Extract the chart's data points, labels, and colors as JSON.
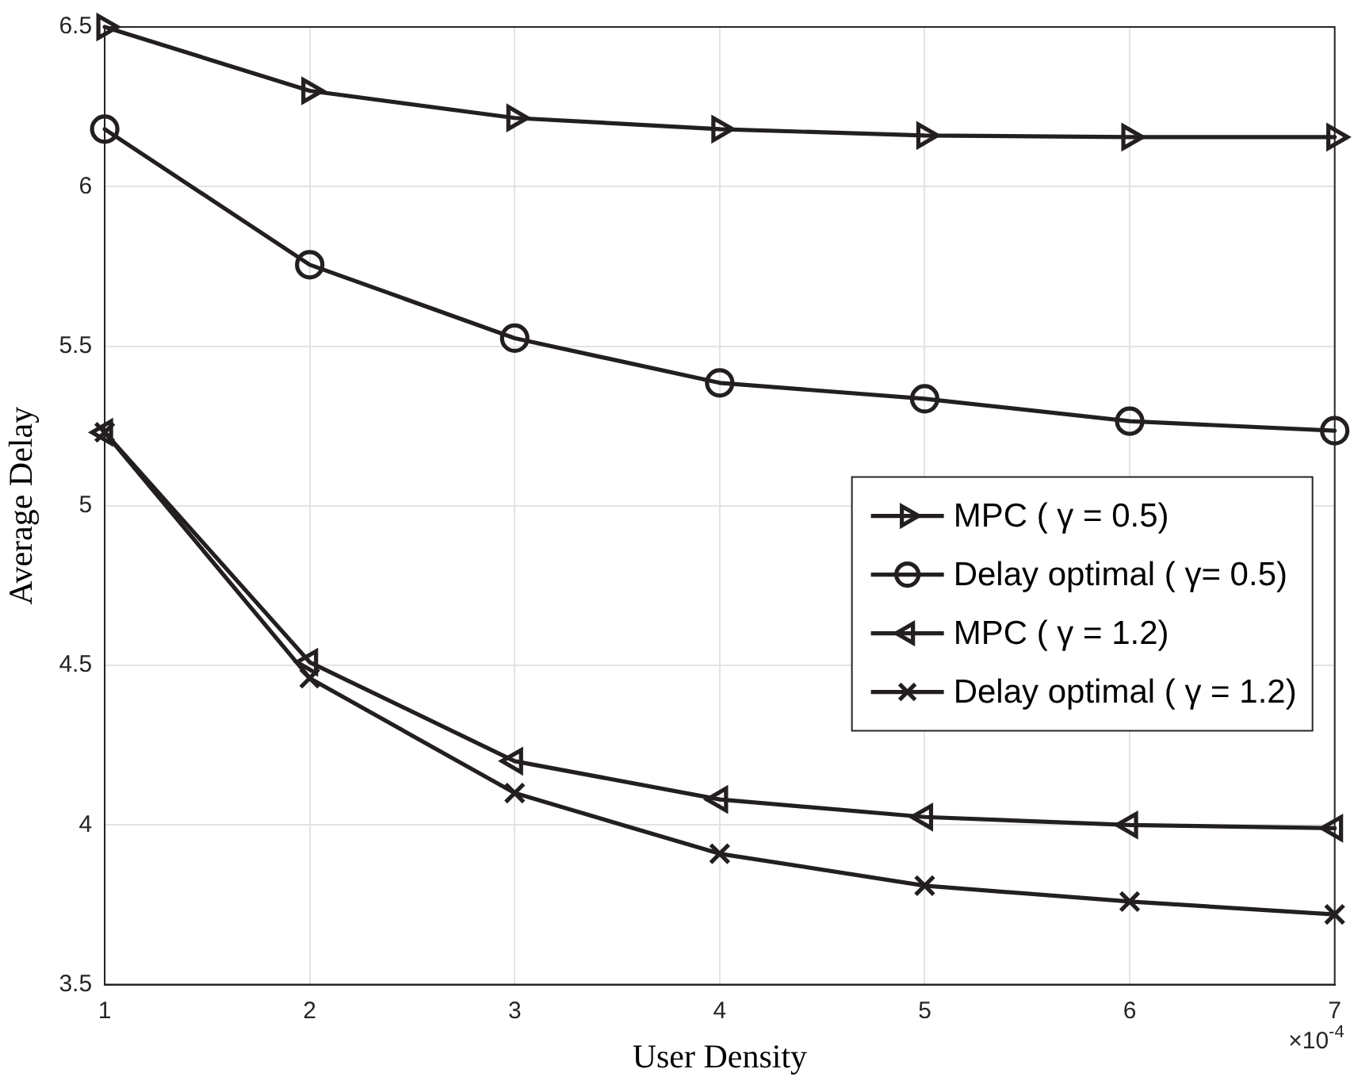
{
  "chart_data": {
    "type": "line",
    "xlabel": "User Density",
    "ylabel": "Average Delay",
    "x": [
      1,
      2,
      3,
      4,
      5,
      6,
      7
    ],
    "xlim": [
      1,
      7
    ],
    "xticks": [
      1,
      2,
      3,
      4,
      5,
      6,
      7
    ],
    "ylim": [
      3.5,
      6.5
    ],
    "yticks": [
      3.5,
      4,
      4.5,
      5,
      5.5,
      6,
      6.5
    ],
    "grid": true,
    "legend": "right",
    "line_style": "solid",
    "annotations": [
      "×10$^{-4}$"
    ],
    "series": [
      {
        "name": "MPC ( γ = 0.5)",
        "color": "#231f20",
        "marker": "triangle-right",
        "values": [
          6.5,
          6.3,
          6.215,
          6.18,
          6.16,
          6.155,
          6.155
        ]
      },
      {
        "name": "Delay optimal ( γ= 0.5)",
        "color": "#231f20",
        "marker": "circle",
        "values": [
          6.18,
          5.755,
          5.525,
          5.385,
          5.335,
          5.265,
          5.235
        ]
      },
      {
        "name": "MPC ( γ = 1.2)",
        "color": "#231f20",
        "marker": "triangle-left",
        "values": [
          5.23,
          4.51,
          4.2,
          4.08,
          4.025,
          4.0,
          3.99
        ]
      },
      {
        "name": "Delay optimal ( γ = 1.2)",
        "color": "#231f20",
        "marker": "cross",
        "values": [
          5.23,
          4.46,
          4.1,
          3.91,
          3.81,
          3.76,
          3.72
        ]
      }
    ]
  }
}
